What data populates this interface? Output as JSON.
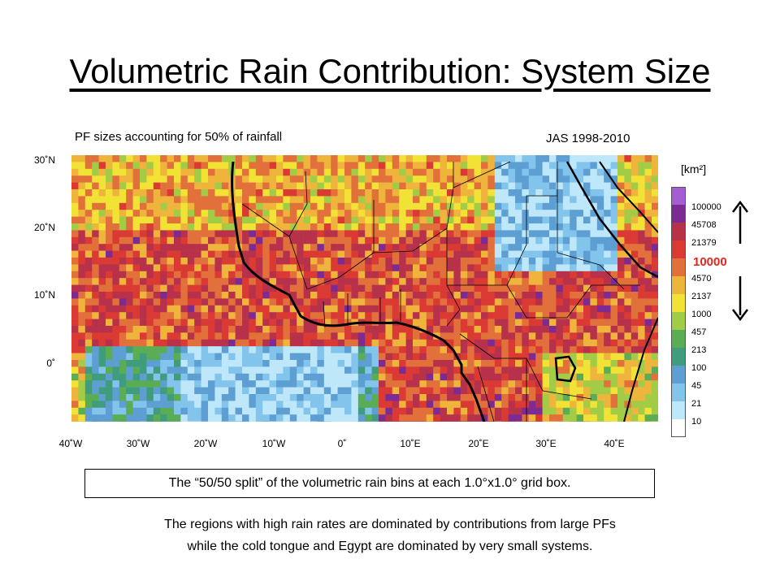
{
  "slide": {
    "title": "Volumetric Rain Contribution: System Size",
    "caption": "The “50/50 split” of the volumetric rain bins at each 1.0°x1.0° grid box.",
    "footnote_line1": "The regions with high rain rates are dominated by contributions from large PFs",
    "footnote_line2": "while the cold tongue and Egypt are dominated by very small systems."
  },
  "map": {
    "title": "PF sizes accounting for 50% of rainfall",
    "period": "JAS 1998-2010",
    "lat_labels": [
      "30˚N",
      "20˚N",
      "10˚N",
      "0˚"
    ],
    "lon_labels": [
      "40˚W",
      "30˚W",
      "20˚W",
      "10˚W",
      "0˚",
      "10˚E",
      "20˚E",
      "30˚E",
      "40˚E"
    ]
  },
  "legend": {
    "unit": "[km²]",
    "highlight": "10000",
    "labels": [
      "100000",
      "45708",
      "21379",
      "4570",
      "2137",
      "1000",
      "457",
      "213",
      "100",
      "45",
      "21",
      "10"
    ],
    "colors": [
      "#a55ed1",
      "#7d2a92",
      "#b8314a",
      "#da3a33",
      "#e2703a",
      "#efb43c",
      "#f2e236",
      "#a3cc46",
      "#5aad55",
      "#3f9c7c",
      "#5d9ed3",
      "#82c4ec",
      "#bfe7fa",
      "#ffffff"
    ]
  }
}
